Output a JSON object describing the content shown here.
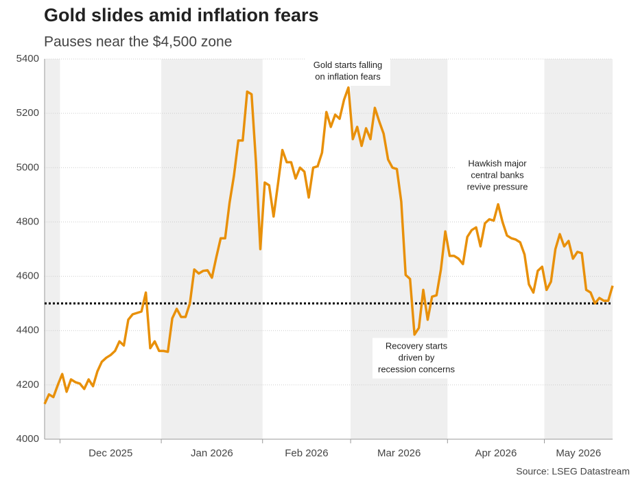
{
  "chart_data": {
    "type": "line",
    "title": "Gold slides amid inflation fears",
    "subtitle": "Pauses near the $4,500 zone",
    "source": "Source: LSEG Datastream",
    "categories": [
      null,
      null,
      null,
      null,
      "Dec 2025",
      null,
      null,
      null,
      null,
      null,
      null,
      null,
      null,
      null,
      null,
      null,
      null,
      null,
      null,
      null,
      null,
      null,
      null,
      null,
      null,
      null,
      null,
      "Jan 2026",
      null,
      null,
      null,
      null,
      null,
      null,
      null,
      null,
      null,
      null,
      null,
      null,
      null,
      null,
      null,
      null,
      null,
      null,
      null,
      null,
      null,
      null,
      "Feb 2026",
      null,
      null,
      null,
      null,
      null,
      null,
      null,
      null,
      null,
      null,
      null,
      null,
      null,
      null,
      null,
      null,
      null,
      null,
      null,
      "Mar 2026",
      null,
      null,
      null,
      null,
      null,
      null,
      null,
      null,
      null,
      null,
      null,
      null,
      null,
      null,
      null,
      null,
      null,
      null,
      null,
      null,
      null,
      "Apr 2026",
      null,
      null,
      null,
      null,
      null,
      null,
      null,
      null,
      null,
      null,
      null,
      null,
      null,
      null,
      null,
      null,
      null,
      null,
      null,
      null,
      null,
      "May 2026",
      null,
      null,
      null,
      null,
      null,
      null,
      null,
      null,
      null,
      null,
      null,
      null,
      null,
      null,
      null
    ],
    "series": [
      {
        "name": "Gold",
        "color": "#e8900a",
        "values": [
          4130,
          4165,
          4155,
          4200,
          4240,
          4175,
          4220,
          4210,
          4205,
          4185,
          4220,
          4195,
          4250,
          4285,
          4300,
          4310,
          4325,
          4360,
          4345,
          4440,
          4460,
          4465,
          4470,
          4540,
          4335,
          4360,
          4325,
          4325,
          4322,
          4445,
          4480,
          4450,
          4450,
          4500,
          4625,
          4610,
          4620,
          4622,
          4595,
          4670,
          4740,
          4740,
          4870,
          4970,
          5100,
          5100,
          5280,
          5270,
          5020,
          4700,
          4945,
          4935,
          4820,
          4940,
          5065,
          5020,
          5020,
          4960,
          5000,
          4985,
          4890,
          5000,
          5005,
          5055,
          5205,
          5150,
          5195,
          5180,
          5250,
          5295,
          5105,
          5150,
          5080,
          5145,
          5105,
          5220,
          5170,
          5125,
          5030,
          5000,
          4995,
          4875,
          4605,
          4590,
          4385,
          4410,
          4550,
          4440,
          4525,
          4530,
          4625,
          4765,
          4675,
          4675,
          4665,
          4645,
          4745,
          4770,
          4780,
          4710,
          4795,
          4810,
          4805,
          4865,
          4800,
          4750,
          4740,
          4735,
          4725,
          4680,
          4570,
          4540,
          4620,
          4635,
          4550,
          4580,
          4700,
          4755,
          4710,
          4730,
          4665,
          4690,
          4685,
          4550,
          4540,
          4500,
          4520,
          4510,
          4510,
          4565
        ]
      }
    ],
    "ylim": [
      4000,
      5400
    ],
    "yticks": [
      4000,
      4200,
      4400,
      4600,
      4800,
      5000,
      5200,
      5400
    ],
    "grid": true,
    "reference_line": 4500,
    "annotations": [
      [
        "Gold starts falling",
        "on inflation fears"
      ],
      [
        "Hawkish major",
        "central banks",
        "revive pressure"
      ],
      [
        "Recovery starts",
        "driven by",
        "recession concerns"
      ]
    ]
  }
}
